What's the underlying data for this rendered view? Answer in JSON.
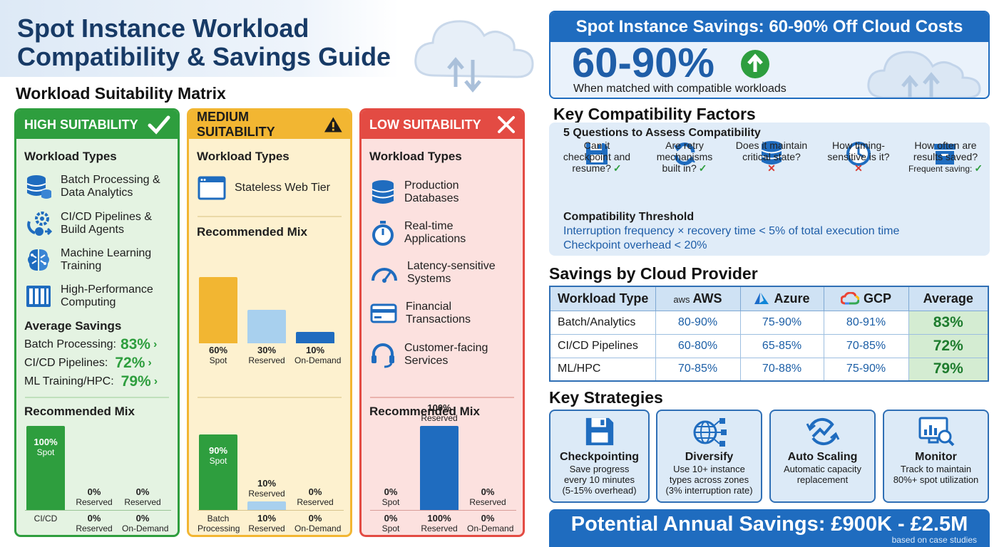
{
  "page": {
    "title_line1": "Spot Instance Workload",
    "title_line2": "Compatibility & Savings Guide"
  },
  "matrix": {
    "heading": "Workload Suitability Matrix",
    "high": {
      "header": "HIGH SUITABILITY",
      "workload_types_label": "Workload Types",
      "items": [
        {
          "line1": "Batch Processing &",
          "line2": "Data Analytics",
          "icon": "database-icon"
        },
        {
          "line1": "CI/CD Pipelines &",
          "line2": "Build Agents",
          "icon": "gear-pipeline-icon"
        },
        {
          "line1": "Machine Learning",
          "line2": "Training",
          "icon": "brain-icon"
        },
        {
          "line1": "High-Performance",
          "line2": "Computing",
          "icon": "server-rack-icon"
        }
      ],
      "avg_savings_label": "Average Savings",
      "savings": [
        {
          "label": "Batch Processing:",
          "value": "83%"
        },
        {
          "label": "CI/CD Pipelines:",
          "value": "72%"
        },
        {
          "label": "ML Training/HPC:",
          "value": "79%"
        }
      ],
      "mix_label": "Recommended Mix",
      "mix": [
        {
          "pct": "100%",
          "name": "Spot",
          "value": 100
        },
        {
          "pct": "0%",
          "name": "Reserved",
          "value": 0
        },
        {
          "pct": "0%",
          "name": "Reserved",
          "value": 0
        }
      ],
      "mix_bottom": [
        {
          "pct": "",
          "name": "CI/CD"
        },
        {
          "pct": "0%",
          "name": "Reserved"
        },
        {
          "pct": "0%",
          "name": "On-Demand"
        }
      ]
    },
    "medium": {
      "header": "MEDIUM SUITABILITY",
      "workload_types_label": "Workload Types",
      "items": [
        {
          "line1": "Stateless Web Tier",
          "icon": "browser-window-icon"
        }
      ],
      "mix_label": "Recommended Mix",
      "mix1": [
        {
          "pct": "60%",
          "name": "Spot",
          "value": 60
        },
        {
          "pct": "30%",
          "name": "Reserved",
          "value": 30
        },
        {
          "pct": "10%",
          "name": "On-Demand",
          "value": 10
        }
      ],
      "mix2": [
        {
          "pct": "90%",
          "name": "Spot",
          "value": 90
        },
        {
          "pct": "10%",
          "name": "Reserved",
          "value": 10
        },
        {
          "pct": "0%",
          "name": "Reserved",
          "value": 0
        }
      ],
      "mix2_bottom": [
        {
          "pct": "",
          "name": "Batch",
          "name2": "Processing"
        },
        {
          "pct": "10%",
          "name": "Reserved"
        },
        {
          "pct": "0%",
          "name": "On-Demand"
        }
      ]
    },
    "low": {
      "header": "LOW SUITABILITY",
      "workload_types_label": "Workload Types",
      "items": [
        {
          "line1": "Production",
          "line2": "Databases",
          "icon": "database-icon"
        },
        {
          "line1": "Real-time",
          "line2": "Applications",
          "icon": "stopwatch-icon"
        },
        {
          "line1": "Latency-sensitive",
          "line2": "Systems",
          "icon": "gauge-icon"
        },
        {
          "line1": "Financial",
          "line2": "Transactions",
          "icon": "credit-card-icon"
        },
        {
          "line1": "Customer-facing",
          "line2": "Services",
          "icon": "headset-icon"
        }
      ],
      "mix_label": "Recommended Mix",
      "mix": [
        {
          "pct": "0%",
          "name": "Spot",
          "value": 0
        },
        {
          "pct": "100%",
          "name": "Reserved",
          "value": 100
        },
        {
          "pct": "0%",
          "name": "Reserved",
          "value": 0
        }
      ],
      "mix_bottom": [
        {
          "pct": "0%",
          "name": "Spot"
        },
        {
          "pct": "100%",
          "name": "Reserved"
        },
        {
          "pct": "0%",
          "name": "On-Demand"
        }
      ]
    }
  },
  "hero": {
    "header": "Spot Instance Savings: 60-90% Off Cloud Costs",
    "big": "60-90%",
    "sub": "When matched with compatible workloads"
  },
  "factors": {
    "heading": "Key Compatibility Factors",
    "questions_label": "5 Questions to Assess Compatibility",
    "questions": [
      {
        "l1": "Can it",
        "l2": "checkpoint and",
        "l3": "resume?",
        "mark": "✓",
        "icon": "floppy-disk-icon"
      },
      {
        "l1": "Are retry",
        "l2": "mechanisms",
        "l3": "built in?",
        "mark": "✓",
        "icon": "refresh-icon"
      },
      {
        "l1": "Does it maintain",
        "l2": "critical state?",
        "l3": "",
        "mark": "✕",
        "icon": "database-icon"
      },
      {
        "l1": "How timing-",
        "l2": "sensitive is it?",
        "l3": "",
        "mark": "✕",
        "icon": "clock-icon"
      },
      {
        "l1": "How often are",
        "l2": "results saved?",
        "l3": "Frequent saving:",
        "mark": "✓",
        "icon": "archive-box-icon"
      }
    ],
    "threshold_label": "Compatibility Threshold",
    "threshold_line1": "Interruption frequency × recovery time < 5% of total execution time",
    "threshold_line2": "Checkpoint overhead < 20%"
  },
  "providers": {
    "heading": "Savings by Cloud Provider",
    "columns": [
      "Workload Type",
      "AWS",
      "Azure",
      "GCP",
      "Average"
    ],
    "aws_logo_text": "aws",
    "rows": [
      {
        "type": "Batch/Analytics",
        "aws": "80-90%",
        "azure": "75-90%",
        "gcp": "80-91%",
        "avg": "83%"
      },
      {
        "type": "CI/CD Pipelines",
        "aws": "60-80%",
        "azure": "65-85%",
        "gcp": "70-85%",
        "avg": "72%"
      },
      {
        "type": "ML/HPC",
        "aws": "70-85%",
        "azure": "70-88%",
        "gcp": "75-90%",
        "avg": "79%"
      }
    ]
  },
  "strategies": {
    "heading": "Key Strategies",
    "cards": [
      {
        "title": "Checkpointing",
        "l1": "Save progress",
        "l2": "every 10 minutes",
        "l3": "(5-15% overhead)",
        "icon": "floppy-disk-icon"
      },
      {
        "title": "Diversify",
        "l1": "Use 10+ instance",
        "l2": "types across zones",
        "l3": "(3% interruption rate)",
        "icon": "globe-network-icon"
      },
      {
        "title": "Auto Scaling",
        "l1": "Automatic capacity",
        "l2": "replacement",
        "l3": "",
        "icon": "scaling-arrows-icon"
      },
      {
        "title": "Monitor",
        "l1": "Track to maintain",
        "l2": "80%+ spot utilization",
        "l3": "",
        "icon": "monitor-chart-icon"
      }
    ]
  },
  "footer": {
    "savings": "Potential Annual Savings: £900K - £2.5M",
    "note": "based on case studies"
  },
  "colors": {
    "green": "#2e9e3e",
    "yellow": "#f2b632",
    "red": "#e34b43",
    "blue": "#1f6cbf",
    "navy": "#173a66"
  }
}
